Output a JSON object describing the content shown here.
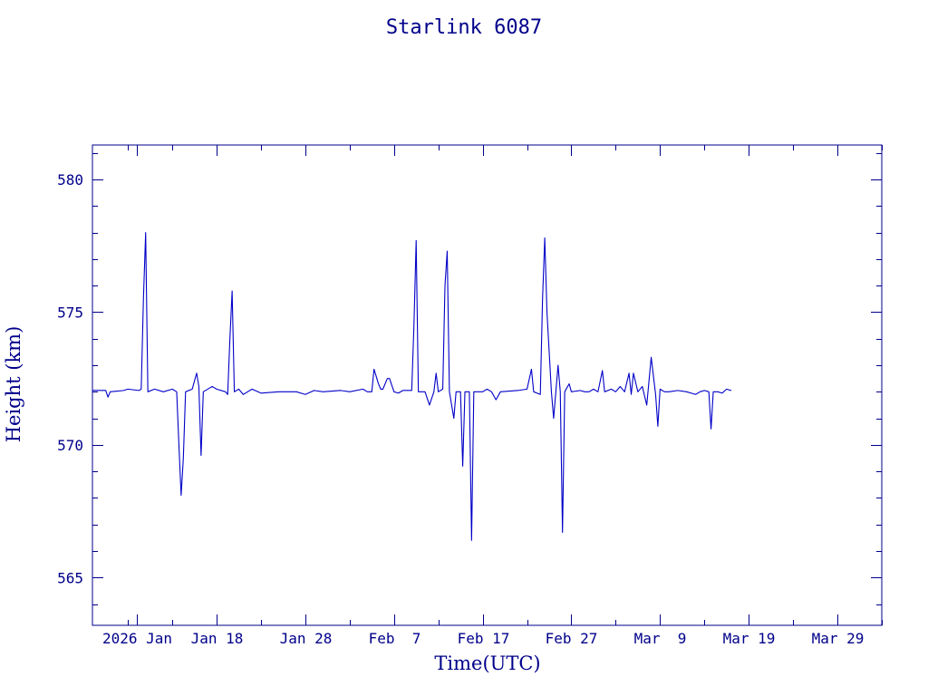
{
  "colors": {
    "text": "#00008b",
    "axis": "#00008b",
    "line": "#0000c8",
    "background": "#ffffff"
  },
  "chart_data": {
    "type": "line",
    "title": "Starlink 6087",
    "xlabel": "Time(UTC)",
    "ylabel": "Height (km)",
    "grid": false,
    "legend": "none",
    "x_unit": "date",
    "xlim": [
      "2026-01-04",
      "2026-04-03"
    ],
    "ylim": [
      563.2,
      581.3
    ],
    "x_ticks": [
      {
        "value": "2026-01-09",
        "label": "2026 Jan"
      },
      {
        "value": "2026-01-18",
        "label": "Jan 18"
      },
      {
        "value": "2026-01-28",
        "label": "Jan 28"
      },
      {
        "value": "2026-02-07",
        "label": "Feb  7"
      },
      {
        "value": "2026-02-17",
        "label": "Feb 17"
      },
      {
        "value": "2026-02-27",
        "label": "Feb 27"
      },
      {
        "value": "2026-03-09",
        "label": "Mar  9"
      },
      {
        "value": "2026-03-19",
        "label": "Mar 19"
      },
      {
        "value": "2026-03-29",
        "label": "Mar 29"
      }
    ],
    "y_ticks": [
      565,
      570,
      575,
      580
    ],
    "series": [
      {
        "points": [
          [
            "2026-01-04T00:00",
            572.05
          ],
          [
            "2026-01-05T12:00",
            572.05
          ],
          [
            "2026-01-05T18:00",
            571.8
          ],
          [
            "2026-01-06T00:00",
            572.0
          ],
          [
            "2026-01-07T12:00",
            572.05
          ],
          [
            "2026-01-08T00:00",
            572.1
          ],
          [
            "2026-01-09T06:00",
            572.05
          ],
          [
            "2026-01-09T12:00",
            572.1
          ],
          [
            "2026-01-09T18:00",
            575.5
          ],
          [
            "2026-01-10T00:00",
            578.0
          ],
          [
            "2026-01-10T06:00",
            572.0
          ],
          [
            "2026-01-11T00:00",
            572.1
          ],
          [
            "2026-01-12T00:00",
            572.0
          ],
          [
            "2026-01-13T00:00",
            572.1
          ],
          [
            "2026-01-13T12:00",
            572.0
          ],
          [
            "2026-01-13T18:00",
            570.0
          ],
          [
            "2026-01-14T00:00",
            568.1
          ],
          [
            "2026-01-14T06:00",
            569.5
          ],
          [
            "2026-01-14T12:00",
            572.0
          ],
          [
            "2026-01-15T06:00",
            572.1
          ],
          [
            "2026-01-15T18:00",
            572.7
          ],
          [
            "2026-01-16T00:00",
            572.2
          ],
          [
            "2026-01-16T06:00",
            569.6
          ],
          [
            "2026-01-16T12:00",
            572.0
          ],
          [
            "2026-01-17T12:00",
            572.2
          ],
          [
            "2026-01-18T00:00",
            572.1
          ],
          [
            "2026-01-19T00:00",
            572.0
          ],
          [
            "2026-01-19T06:00",
            571.9
          ],
          [
            "2026-01-19T12:00",
            574.0
          ],
          [
            "2026-01-19T18:00",
            575.8
          ],
          [
            "2026-01-20T00:00",
            572.0
          ],
          [
            "2026-01-20T12:00",
            572.1
          ],
          [
            "2026-01-21T00:00",
            571.9
          ],
          [
            "2026-01-21T12:00",
            572.0
          ],
          [
            "2026-01-22T00:00",
            572.1
          ],
          [
            "2026-01-23T00:00",
            571.95
          ],
          [
            "2026-01-25T00:00",
            572.0
          ],
          [
            "2026-01-27T00:00",
            572.0
          ],
          [
            "2026-01-28T00:00",
            571.9
          ],
          [
            "2026-01-29T00:00",
            572.05
          ],
          [
            "2026-01-30T00:00",
            572.0
          ],
          [
            "2026-02-01T00:00",
            572.05
          ],
          [
            "2026-02-02T00:00",
            572.0
          ],
          [
            "2026-02-03T12:00",
            572.1
          ],
          [
            "2026-02-04T00:00",
            572.0
          ],
          [
            "2026-02-04T12:00",
            572.0
          ],
          [
            "2026-02-04T18:00",
            572.85
          ],
          [
            "2026-02-05T06:00",
            572.3
          ],
          [
            "2026-02-05T12:00",
            572.1
          ],
          [
            "2026-02-05T18:00",
            572.1
          ],
          [
            "2026-02-06T06:00",
            572.5
          ],
          [
            "2026-02-06T12:00",
            572.5
          ],
          [
            "2026-02-07T00:00",
            572.0
          ],
          [
            "2026-02-07T12:00",
            571.95
          ],
          [
            "2026-02-08T00:00",
            572.05
          ],
          [
            "2026-02-09T00:00",
            572.05
          ],
          [
            "2026-02-09T06:00",
            574.5
          ],
          [
            "2026-02-09T12:00",
            577.7
          ],
          [
            "2026-02-09T18:00",
            572.0
          ],
          [
            "2026-02-10T12:00",
            572.0
          ],
          [
            "2026-02-11T00:00",
            571.5
          ],
          [
            "2026-02-11T12:00",
            572.0
          ],
          [
            "2026-02-11T18:00",
            572.7
          ],
          [
            "2026-02-12T00:00",
            572.0
          ],
          [
            "2026-02-12T12:00",
            572.1
          ],
          [
            "2026-02-12T18:00",
            576.0
          ],
          [
            "2026-02-13T00:00",
            577.3
          ],
          [
            "2026-02-13T06:00",
            572.0
          ],
          [
            "2026-02-13T18:00",
            571.0
          ],
          [
            "2026-02-14T00:00",
            572.0
          ],
          [
            "2026-02-14T12:00",
            572.0
          ],
          [
            "2026-02-14T18:00",
            569.2
          ],
          [
            "2026-02-15T00:00",
            572.0
          ],
          [
            "2026-02-15T12:00",
            572.0
          ],
          [
            "2026-02-15T18:00",
            566.4
          ],
          [
            "2026-02-16T00:00",
            572.0
          ],
          [
            "2026-02-17T00:00",
            572.0
          ],
          [
            "2026-02-17T12:00",
            572.1
          ],
          [
            "2026-02-18T00:00",
            572.0
          ],
          [
            "2026-02-18T12:00",
            571.7
          ],
          [
            "2026-02-19T00:00",
            572.0
          ],
          [
            "2026-02-21T00:00",
            572.05
          ],
          [
            "2026-02-22T00:00",
            572.1
          ],
          [
            "2026-02-22T12:00",
            572.85
          ],
          [
            "2026-02-22T18:00",
            572.0
          ],
          [
            "2026-02-23T12:00",
            571.9
          ],
          [
            "2026-02-23T18:00",
            575.5
          ],
          [
            "2026-02-24T00:00",
            577.8
          ],
          [
            "2026-02-24T06:00",
            575.0
          ],
          [
            "2026-02-24T18:00",
            572.0
          ],
          [
            "2026-02-25T00:00",
            571.0
          ],
          [
            "2026-02-25T12:00",
            573.0
          ],
          [
            "2026-02-25T18:00",
            572.0
          ],
          [
            "2026-02-26T00:00",
            566.7
          ],
          [
            "2026-02-26T06:00",
            572.0
          ],
          [
            "2026-02-26T18:00",
            572.3
          ],
          [
            "2026-02-27T00:00",
            572.0
          ],
          [
            "2026-02-28T00:00",
            572.05
          ],
          [
            "2026-02-28T12:00",
            572.0
          ],
          [
            "2026-03-01T00:00",
            572.0
          ],
          [
            "2026-03-01T12:00",
            572.1
          ],
          [
            "2026-03-02T00:00",
            572.0
          ],
          [
            "2026-03-02T12:00",
            572.8
          ],
          [
            "2026-03-02T18:00",
            572.0
          ],
          [
            "2026-03-03T12:00",
            572.1
          ],
          [
            "2026-03-04T00:00",
            572.0
          ],
          [
            "2026-03-04T12:00",
            572.2
          ],
          [
            "2026-03-05T00:00",
            572.0
          ],
          [
            "2026-03-05T12:00",
            572.7
          ],
          [
            "2026-03-05T18:00",
            571.9
          ],
          [
            "2026-03-06T00:00",
            572.7
          ],
          [
            "2026-03-06T12:00",
            572.0
          ],
          [
            "2026-03-07T00:00",
            572.2
          ],
          [
            "2026-03-07T12:00",
            571.5
          ],
          [
            "2026-03-08T00:00",
            573.3
          ],
          [
            "2026-03-08T12:00",
            571.9
          ],
          [
            "2026-03-08T18:00",
            570.7
          ],
          [
            "2026-03-09T00:00",
            572.1
          ],
          [
            "2026-03-09T12:00",
            572.0
          ],
          [
            "2026-03-10T00:00",
            572.0
          ],
          [
            "2026-03-11T00:00",
            572.05
          ],
          [
            "2026-03-12T00:00",
            572.0
          ],
          [
            "2026-03-13T00:00",
            571.9
          ],
          [
            "2026-03-13T12:00",
            572.0
          ],
          [
            "2026-03-14T00:00",
            572.05
          ],
          [
            "2026-03-14T12:00",
            572.0
          ],
          [
            "2026-03-14T18:00",
            570.6
          ],
          [
            "2026-03-15T00:00",
            572.0
          ],
          [
            "2026-03-15T12:00",
            572.0
          ],
          [
            "2026-03-16T00:00",
            571.95
          ],
          [
            "2026-03-16T12:00",
            572.1
          ],
          [
            "2026-03-17T00:00",
            572.05
          ]
        ]
      }
    ]
  }
}
